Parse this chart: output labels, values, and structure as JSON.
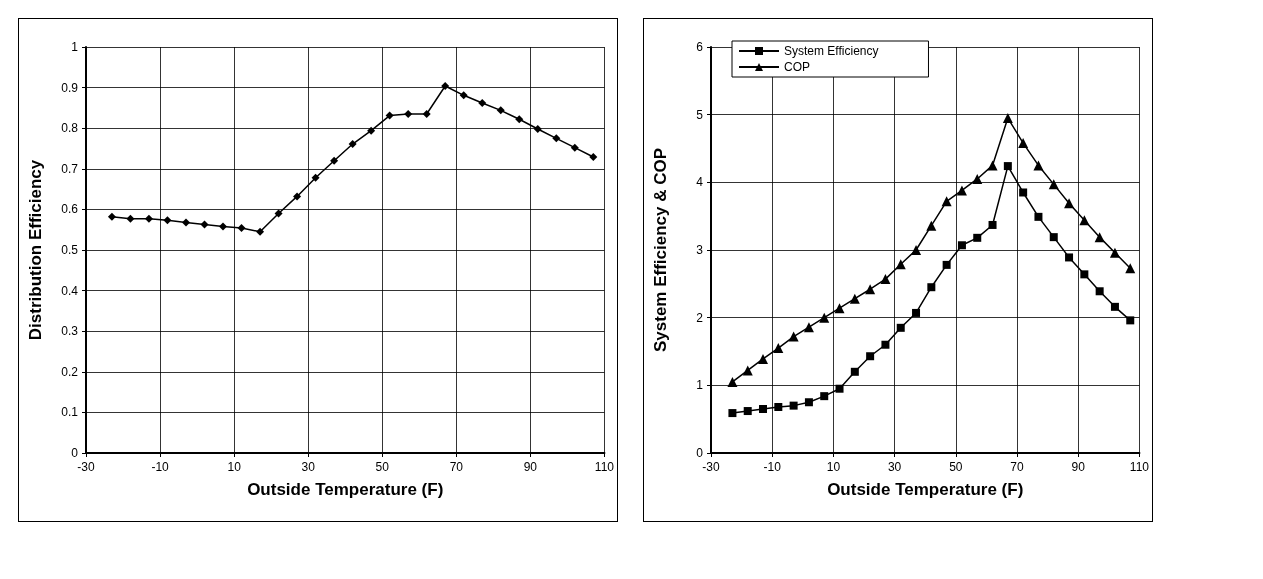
{
  "chart_data": [
    {
      "type": "line",
      "xlabel": "Outside Temperature (F)",
      "ylabel": "Distribution Efficiency",
      "x": [
        -23,
        -18,
        -13,
        -8,
        -3,
        2,
        7,
        12,
        17,
        22,
        27,
        32,
        37,
        42,
        47,
        52,
        57,
        62,
        67,
        72,
        77,
        82,
        87,
        92,
        97,
        102,
        107
      ],
      "series": [
        {
          "color": "#000000",
          "values": [
            0.582,
            0.577,
            0.577,
            0.573,
            0.568,
            0.563,
            0.558,
            0.554,
            0.545,
            0.59,
            0.632,
            0.678,
            0.72,
            0.761,
            0.794,
            0.831,
            0.835,
            0.835,
            0.904,
            0.881,
            0.862,
            0.844,
            0.822,
            0.798,
            0.775,
            0.752,
            0.729
          ]
        }
      ],
      "marker": "diamond",
      "grid": true,
      "legend": false,
      "xlim": [
        -30,
        110
      ],
      "xticks": [
        -30,
        -10,
        10,
        30,
        50,
        70,
        90,
        110
      ],
      "ylim": [
        0,
        1
      ],
      "yticks": [
        0,
        0.1,
        0.2,
        0.3,
        0.4,
        0.5,
        0.6,
        0.7,
        0.8,
        0.9,
        1
      ]
    },
    {
      "type": "line",
      "xlabel": "Outside Temperature (F)",
      "ylabel": "System Efficiency & COP",
      "x": [
        -23,
        -18,
        -13,
        -8,
        -3,
        2,
        7,
        12,
        17,
        22,
        27,
        32,
        37,
        42,
        47,
        52,
        57,
        62,
        67,
        72,
        77,
        82,
        87,
        92,
        97,
        102,
        107
      ],
      "series": [
        {
          "name": "System Efficiency",
          "color": "#000000",
          "marker": "square",
          "values": [
            0.59,
            0.62,
            0.65,
            0.68,
            0.7,
            0.75,
            0.84,
            0.95,
            1.2,
            1.43,
            1.6,
            1.85,
            2.07,
            2.45,
            2.78,
            3.07,
            3.18,
            3.37,
            4.24,
            3.85,
            3.49,
            3.19,
            2.89,
            2.64,
            2.39,
            2.16,
            1.96
          ]
        },
        {
          "name": "COP",
          "color": "#000000",
          "marker": "triangle",
          "values": [
            1.05,
            1.22,
            1.39,
            1.55,
            1.72,
            1.86,
            2.0,
            2.14,
            2.28,
            2.42,
            2.57,
            2.79,
            3.0,
            3.36,
            3.72,
            3.88,
            4.05,
            4.25,
            4.95,
            4.58,
            4.25,
            3.97,
            3.69,
            3.44,
            3.19,
            2.96,
            2.73
          ]
        }
      ],
      "grid": true,
      "legend": "top left",
      "xlim": [
        -30,
        110
      ],
      "xticks": [
        -30,
        -10,
        10,
        30,
        50,
        70,
        90,
        110
      ],
      "ylim": [
        0,
        6
      ],
      "yticks": [
        0,
        1,
        2,
        3,
        4,
        5,
        6
      ]
    }
  ]
}
